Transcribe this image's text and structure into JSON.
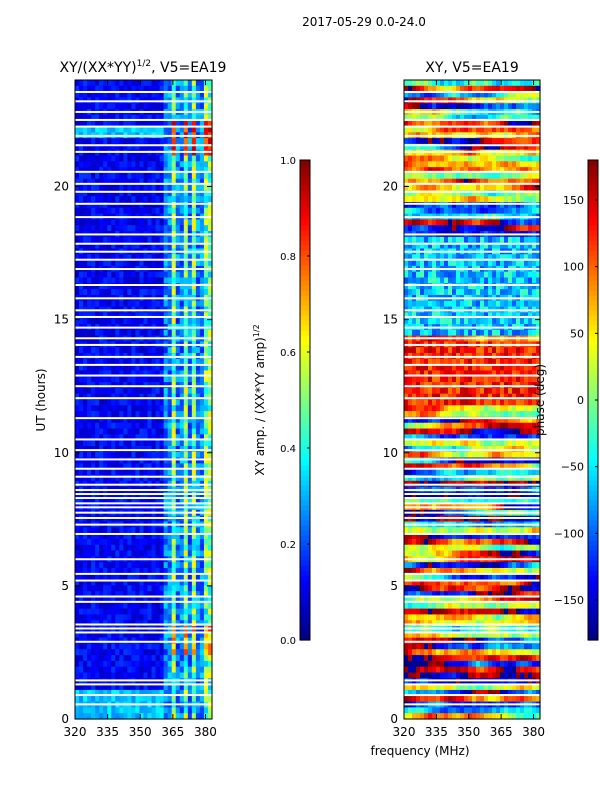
{
  "figure": {
    "suptitle": "2017-05-29 0.0-24.0",
    "xlabel": "frequency (MHz)",
    "ylabel": "UT (hours)"
  },
  "colors": {
    "jet": [
      "#00007f",
      "#0000ff",
      "#007fff",
      "#00ffff",
      "#7fff7f",
      "#ffff00",
      "#ff7f00",
      "#ff0000",
      "#7f0000"
    ],
    "gap": "#ffffff",
    "axis": "#000000"
  },
  "chart_data": [
    {
      "type": "heatmap",
      "title": "XY/(XX*YY)",
      "title_exponent": "1/2",
      "title_suffix": ", V5=EA19",
      "xlabel": "",
      "ylabel": "UT (hours)",
      "xlim": [
        320,
        383
      ],
      "ylim": [
        0,
        24
      ],
      "x_ticks": [
        320,
        335,
        350,
        365,
        380
      ],
      "y_ticks": [
        0,
        5,
        10,
        15,
        20
      ],
      "rfi_free_band_mhz": [
        320,
        360
      ],
      "band_edges_mhz": [
        361,
        364,
        367,
        370,
        373,
        376,
        379
      ],
      "strong_rfi_hours": [
        1.5,
        2.9
      ],
      "colorbar": {
        "label": "XY amp. / (XX*YY amp)",
        "label_exponent": "1/2",
        "range": [
          0.0,
          1.0
        ],
        "ticks": [
          "0.0",
          "0.2",
          "0.4",
          "0.6",
          "0.8",
          "1.0"
        ]
      }
    },
    {
      "type": "heatmap",
      "title": "XY, V5=EA19",
      "xlabel": "frequency (MHz)",
      "ylabel": "",
      "xlim": [
        320,
        383
      ],
      "ylim": [
        0,
        24
      ],
      "x_ticks": [
        320,
        335,
        350,
        365,
        380
      ],
      "y_ticks": [
        0,
        5,
        10,
        15,
        20
      ],
      "colorbar": {
        "label": "phase (deg)",
        "range": [
          -180,
          180
        ],
        "ticks": [
          "−150",
          "−100",
          "−50",
          "0",
          "50",
          "100",
          "150"
        ]
      }
    }
  ],
  "flagged_hours": [
    0.55,
    0.9,
    1.3,
    1.45,
    2.9,
    3.25,
    3.4,
    3.55,
    4.4,
    4.6,
    5.2,
    5.45,
    6.0,
    6.95,
    7.3,
    7.55,
    7.75,
    7.95,
    8.1,
    8.3,
    8.45,
    8.6,
    8.8,
    9.1,
    9.4,
    9.75,
    10.1,
    10.5,
    11.3,
    12.05,
    12.5,
    12.9,
    13.3,
    13.6,
    14.05,
    14.3,
    14.7,
    15.1,
    15.35,
    15.8,
    16.3,
    16.9,
    17.25,
    17.55,
    17.85,
    18.2,
    18.85,
    19.35,
    19.8,
    20.1,
    20.55,
    21.3,
    21.55,
    21.9,
    22.25,
    22.5,
    22.8,
    23.2,
    23.55
  ]
}
